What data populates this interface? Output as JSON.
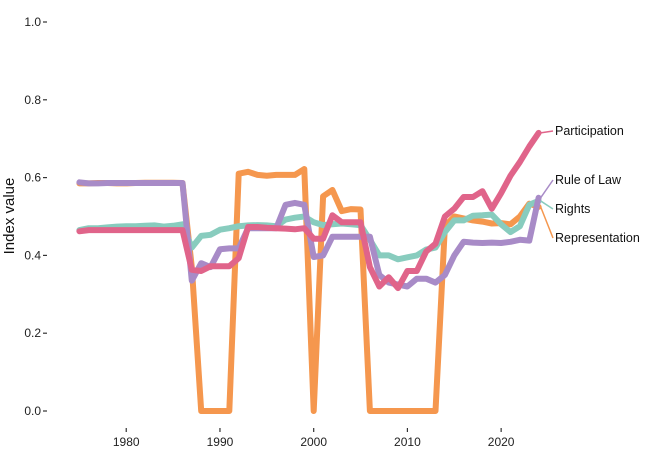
{
  "chart_data": {
    "type": "line",
    "title": "",
    "xlabel": "",
    "ylabel": "Index value",
    "xlim": [
      1974,
      2025
    ],
    "ylim": [
      0.0,
      1.0
    ],
    "x_ticks": [
      1980,
      1990,
      2000,
      2010,
      2020
    ],
    "y_ticks": [
      0.0,
      0.2,
      0.4,
      0.6,
      0.8,
      1.0
    ],
    "y_tick_labels": [
      "0.0",
      "0.2",
      "0.4",
      "0.6",
      "0.8",
      "1.0"
    ],
    "grid": false,
    "legend": "direct labels at line ends (right)",
    "x": [
      1975,
      1976,
      1977,
      1978,
      1979,
      1980,
      1981,
      1982,
      1983,
      1984,
      1985,
      1986,
      1987,
      1988,
      1989,
      1990,
      1991,
      1992,
      1993,
      1994,
      1995,
      1996,
      1997,
      1998,
      1999,
      2000,
      2001,
      2002,
      2003,
      2004,
      2005,
      2006,
      2007,
      2008,
      2009,
      2010,
      2011,
      2012,
      2013,
      2014,
      2015,
      2016,
      2017,
      2018,
      2019,
      2020,
      2021,
      2022,
      2023,
      2024
    ],
    "series": [
      {
        "name": "Representation",
        "color": "#F5974E",
        "values": [
          0.585,
          0.585,
          0.586,
          0.586,
          0.585,
          0.585,
          0.586,
          0.587,
          0.587,
          0.587,
          0.587,
          0.586,
          0.37,
          0.0,
          0.0,
          0.0,
          0.0,
          0.61,
          0.615,
          0.607,
          0.605,
          0.607,
          0.607,
          0.607,
          0.622,
          0.0,
          0.552,
          0.568,
          0.514,
          0.519,
          0.518,
          0.0,
          0.0,
          0.0,
          0.0,
          0.0,
          0.0,
          0.0,
          0.0,
          0.475,
          0.5,
          0.495,
          0.49,
          0.487,
          0.482,
          0.483,
          0.48,
          0.5,
          0.533,
          0.525
        ]
      },
      {
        "name": "Rights",
        "color": "#88CCBE",
        "values": [
          0.465,
          0.47,
          0.47,
          0.472,
          0.474,
          0.475,
          0.475,
          0.476,
          0.477,
          0.474,
          0.476,
          0.48,
          0.42,
          0.45,
          0.453,
          0.466,
          0.47,
          0.475,
          0.477,
          0.478,
          0.477,
          0.475,
          0.492,
          0.497,
          0.5,
          0.485,
          0.478,
          0.48,
          0.482,
          0.48,
          0.478,
          0.44,
          0.4,
          0.4,
          0.39,
          0.395,
          0.4,
          0.415,
          0.42,
          0.46,
          0.49,
          0.49,
          0.502,
          0.503,
          0.505,
          0.48,
          0.46,
          0.475,
          0.53,
          0.54
        ]
      },
      {
        "name": "Rule of Law",
        "color": "#A88BC7",
        "values": [
          0.588,
          0.585,
          0.585,
          0.586,
          0.586,
          0.586,
          0.586,
          0.586,
          0.586,
          0.586,
          0.586,
          0.586,
          0.335,
          0.38,
          0.37,
          0.416,
          0.418,
          0.418,
          0.47,
          0.47,
          0.47,
          0.47,
          0.53,
          0.535,
          0.53,
          0.396,
          0.4,
          0.448,
          0.448,
          0.448,
          0.448,
          0.448,
          0.35,
          0.33,
          0.325,
          0.32,
          0.34,
          0.34,
          0.33,
          0.35,
          0.4,
          0.435,
          0.433,
          0.432,
          0.433,
          0.432,
          0.435,
          0.44,
          0.438,
          0.548
        ]
      },
      {
        "name": "Participation",
        "color": "#E0648A",
        "values": [
          0.462,
          0.465,
          0.465,
          0.465,
          0.465,
          0.465,
          0.465,
          0.465,
          0.465,
          0.465,
          0.465,
          0.465,
          0.363,
          0.36,
          0.372,
          0.372,
          0.372,
          0.393,
          0.473,
          0.473,
          0.471,
          0.47,
          0.469,
          0.467,
          0.47,
          0.443,
          0.443,
          0.503,
          0.485,
          0.485,
          0.485,
          0.37,
          0.32,
          0.344,
          0.316,
          0.36,
          0.36,
          0.41,
          0.43,
          0.5,
          0.52,
          0.55,
          0.55,
          0.565,
          0.52,
          0.56,
          0.605,
          0.64,
          0.68,
          0.715
        ]
      }
    ]
  }
}
